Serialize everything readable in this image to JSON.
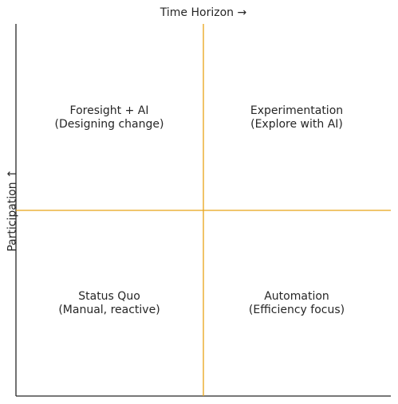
{
  "axes": {
    "x_title": "Time Horizon →",
    "y_title": "Participation ↑"
  },
  "quadrants": [
    {
      "id": "top-left",
      "line1": "Foresight + AI",
      "line2": "(Designing change)"
    },
    {
      "id": "top-right",
      "line1": "Experimentation",
      "line2": "(Explore with AI)"
    },
    {
      "id": "bottom-left",
      "line1": "Status Quo",
      "line2": "(Manual, reactive)"
    },
    {
      "id": "bottom-right",
      "line1": "Automation",
      "line2": "(Efficiency focus)"
    }
  ],
  "colors": {
    "axis": "#262626",
    "divider": "#e8a317",
    "text": "#262626"
  }
}
